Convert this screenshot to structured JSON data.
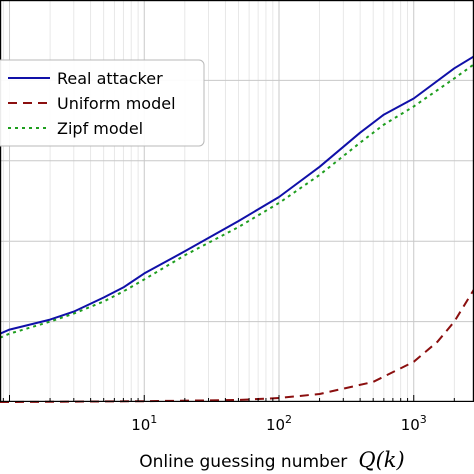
{
  "chart_data": {
    "type": "line",
    "xlabel_text": "Online guessing number",
    "xlabel_math": "Q(k)",
    "x_scale": "log",
    "xlim": [
      0.85,
      2800
    ],
    "ylim": [
      0,
      1
    ],
    "grid": true,
    "legend_position": "top-left",
    "x_ticks": [
      {
        "value": 10,
        "base": "10",
        "exp": "1"
      },
      {
        "value": 100,
        "base": "10",
        "exp": "2"
      },
      {
        "value": 1000,
        "base": "10",
        "exp": "3"
      }
    ],
    "series": [
      {
        "name": "Real attacker",
        "color": "#1010a8",
        "dash": "solid",
        "x": [
          0.85,
          1,
          2,
          3,
          5,
          7,
          10,
          20,
          50,
          100,
          200,
          400,
          600,
          1000,
          2000,
          2800
        ],
        "y": [
          0.17,
          0.18,
          0.205,
          0.225,
          0.26,
          0.285,
          0.32,
          0.375,
          0.45,
          0.51,
          0.585,
          0.67,
          0.715,
          0.755,
          0.83,
          0.86
        ]
      },
      {
        "name": "Uniform model",
        "color": "#8b0f0f",
        "dash": "dashed",
        "x": [
          0.85,
          1,
          10,
          50,
          100,
          200,
          500,
          1000,
          1500,
          2000,
          2800
        ],
        "y": [
          0.0,
          0.0,
          0.002,
          0.005,
          0.01,
          0.02,
          0.05,
          0.1,
          0.15,
          0.2,
          0.28
        ]
      },
      {
        "name": "Zipf model",
        "color": "#1e9e1e",
        "dash": "dotted",
        "x": [
          0.85,
          1,
          2,
          3,
          5,
          7,
          10,
          20,
          50,
          100,
          200,
          400,
          600,
          1000,
          2000,
          2800
        ],
        "y": [
          0.16,
          0.17,
          0.2,
          0.22,
          0.25,
          0.275,
          0.305,
          0.365,
          0.435,
          0.495,
          0.565,
          0.645,
          0.69,
          0.735,
          0.805,
          0.84
        ]
      }
    ]
  }
}
